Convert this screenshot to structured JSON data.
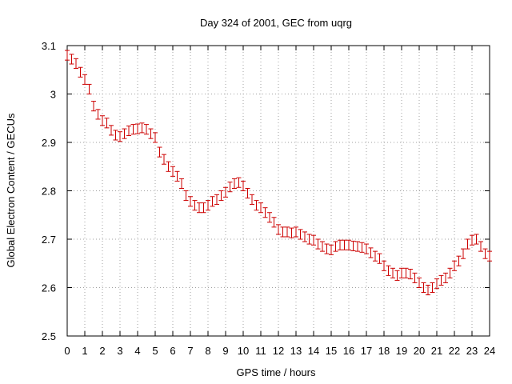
{
  "chart_data": {
    "type": "scatter",
    "title": "Day 324 of 2001, GEC from uqrg",
    "xlabel": "GPS time / hours",
    "ylabel": "Global Electron Content / GECUs",
    "xlim": [
      0,
      24
    ],
    "ylim": [
      2.5,
      3.1
    ],
    "xticks": [
      "0",
      "1",
      "2",
      "3",
      "4",
      "5",
      "6",
      "7",
      "8",
      "9",
      "10",
      "11",
      "12",
      "13",
      "14",
      "15",
      "16",
      "17",
      "18",
      "19",
      "20",
      "21",
      "22",
      "23",
      "24"
    ],
    "yticks": [
      "2.5",
      "2.6",
      "2.7",
      "2.8",
      "2.9",
      "3",
      "3.1"
    ],
    "grid": true,
    "marker": "error-bar",
    "color": "#cc0000",
    "error": 0.01,
    "x": [
      0,
      0.25,
      0.5,
      0.75,
      1,
      1.25,
      1.5,
      1.75,
      2,
      2.25,
      2.5,
      2.75,
      3,
      3.25,
      3.5,
      3.75,
      4,
      4.25,
      4.5,
      4.75,
      5,
      5.25,
      5.5,
      5.75,
      6,
      6.25,
      6.5,
      6.75,
      7,
      7.25,
      7.5,
      7.75,
      8,
      8.25,
      8.5,
      8.75,
      9,
      9.25,
      9.5,
      9.75,
      10,
      10.25,
      10.5,
      10.75,
      11,
      11.25,
      11.5,
      11.75,
      12,
      12.25,
      12.5,
      12.75,
      13,
      13.25,
      13.5,
      13.75,
      14,
      14.25,
      14.5,
      14.75,
      15,
      15.25,
      15.5,
      15.75,
      16,
      16.25,
      16.5,
      16.75,
      17,
      17.25,
      17.5,
      17.75,
      18,
      18.25,
      18.5,
      18.75,
      19,
      19.25,
      19.5,
      19.75,
      20,
      20.25,
      20.5,
      20.75,
      21,
      21.25,
      21.5,
      21.75,
      22,
      22.25,
      22.5,
      22.75,
      23,
      23.25,
      23.5,
      23.75,
      24
    ],
    "y": [
      3.08,
      3.072,
      3.063,
      3.045,
      3.03,
      3.01,
      2.975,
      2.958,
      2.945,
      2.94,
      2.925,
      2.915,
      2.912,
      2.918,
      2.924,
      2.927,
      2.928,
      2.93,
      2.927,
      2.918,
      2.91,
      2.88,
      2.865,
      2.85,
      2.84,
      2.83,
      2.815,
      2.79,
      2.778,
      2.77,
      2.765,
      2.765,
      2.77,
      2.778,
      2.782,
      2.79,
      2.797,
      2.808,
      2.815,
      2.817,
      2.81,
      2.795,
      2.782,
      2.77,
      2.765,
      2.755,
      2.745,
      2.735,
      2.72,
      2.715,
      2.715,
      2.713,
      2.715,
      2.71,
      2.705,
      2.7,
      2.698,
      2.69,
      2.685,
      2.68,
      2.678,
      2.685,
      2.688,
      2.688,
      2.688,
      2.686,
      2.685,
      2.683,
      2.68,
      2.672,
      2.665,
      2.66,
      2.645,
      2.635,
      2.63,
      2.625,
      2.63,
      2.63,
      2.628,
      2.62,
      2.61,
      2.6,
      2.595,
      2.6,
      2.608,
      2.615,
      2.62,
      2.63,
      2.645,
      2.655,
      2.67,
      2.69,
      2.698,
      2.7,
      2.685,
      2.67,
      2.665
    ]
  }
}
